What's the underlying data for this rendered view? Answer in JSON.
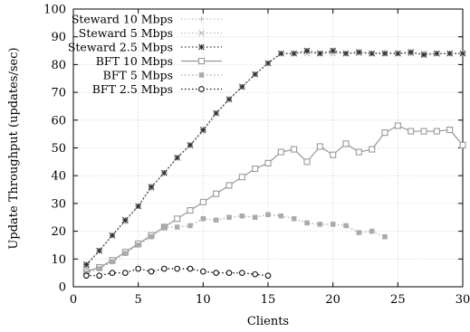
{
  "chart_data": {
    "type": "line",
    "title": "",
    "xlabel": "Clients",
    "ylabel": "Update Throughput (updates/sec)",
    "xlim": [
      0,
      30
    ],
    "ylim": [
      0,
      100
    ],
    "xticks": [
      0,
      5,
      10,
      15,
      20,
      25,
      30
    ],
    "yticks": [
      0,
      10,
      20,
      30,
      40,
      50,
      60,
      70,
      80,
      90,
      100
    ],
    "grid": true,
    "legend_position": "top-left",
    "series": [
      {
        "name": "Steward 10 Mbps",
        "marker": "plus",
        "dash": "dotted",
        "color": "#bbbbbb",
        "x": [
          1,
          2,
          3,
          4,
          5,
          6,
          7,
          8,
          9,
          10,
          11,
          12,
          13,
          14,
          15,
          16,
          17,
          18,
          19,
          20,
          21,
          22,
          23,
          24,
          25,
          26,
          27,
          28,
          29,
          30
        ],
        "y": [
          7.5,
          13,
          18.5,
          23.5,
          29,
          35.5,
          41,
          46.5,
          51,
          56,
          62.5,
          67.5,
          72,
          76.5,
          80.5,
          84,
          84,
          84.5,
          84,
          84.5,
          84,
          84.5,
          84,
          84.5,
          84,
          84,
          84,
          84,
          84,
          84
        ]
      },
      {
        "name": "Steward 5 Mbps",
        "marker": "cross",
        "dash": "dotted",
        "color": "#bbbbbb",
        "x": [
          1,
          2,
          3,
          4,
          5,
          6,
          7,
          8,
          9,
          10,
          11,
          12,
          13,
          14,
          15,
          16,
          17,
          18,
          19,
          20,
          21,
          22,
          23,
          24,
          25,
          26,
          27,
          28,
          29,
          30
        ],
        "y": [
          7.5,
          13,
          18.5,
          23.5,
          29,
          35.5,
          41,
          46.5,
          51,
          56,
          62.5,
          67.5,
          72,
          76.5,
          80.5,
          84,
          84,
          84,
          84,
          84,
          84,
          84,
          84,
          84,
          84,
          84,
          84,
          84,
          84,
          84
        ]
      },
      {
        "name": "Steward 2.5 Mbps",
        "marker": "star",
        "dash": "dotted",
        "color": "#333333",
        "x": [
          1,
          2,
          3,
          4,
          5,
          6,
          7,
          8,
          9,
          10,
          11,
          12,
          13,
          14,
          15,
          16,
          17,
          18,
          19,
          20,
          21,
          22,
          23,
          24,
          25,
          26,
          27,
          28,
          29,
          30
        ],
        "y": [
          8,
          13,
          18.5,
          24,
          29,
          36,
          41,
          46.5,
          51,
          56.5,
          62.5,
          67.5,
          72,
          76.5,
          80.5,
          84,
          84,
          85,
          84,
          85,
          84,
          84.5,
          84,
          84,
          84,
          84.5,
          83.5,
          84,
          84,
          84
        ]
      },
      {
        "name": "BFT 10 Mbps",
        "marker": "square-open",
        "dash": "solid",
        "color": "#999999",
        "x": [
          1,
          2,
          3,
          4,
          5,
          6,
          7,
          8,
          9,
          10,
          11,
          12,
          13,
          14,
          15,
          16,
          17,
          18,
          19,
          20,
          21,
          22,
          23,
          24,
          25,
          26,
          27,
          28,
          29,
          30
        ],
        "y": [
          5.5,
          7,
          9.5,
          12.5,
          15.5,
          18.5,
          21.5,
          24.5,
          27.5,
          30.5,
          33.5,
          36.5,
          39.5,
          42.5,
          44.5,
          48.5,
          49.5,
          45,
          50.5,
          47.5,
          51.5,
          48.5,
          49.5,
          55.5,
          58,
          56,
          56,
          56,
          56.5,
          51
        ]
      },
      {
        "name": "BFT 5 Mbps",
        "marker": "square-filled",
        "dash": "dotted",
        "color": "#aaaaaa",
        "x": [
          1,
          2,
          3,
          4,
          5,
          6,
          7,
          8,
          9,
          10,
          11,
          12,
          13,
          14,
          15,
          16,
          17,
          18,
          19,
          20,
          21,
          22,
          23,
          24
        ],
        "y": [
          5,
          6.5,
          9,
          12,
          15,
          18,
          21.5,
          21.5,
          22,
          24.5,
          24,
          25,
          25.5,
          25,
          26,
          25.5,
          24.5,
          23,
          22.5,
          22.5,
          22,
          19.5,
          20,
          18
        ]
      },
      {
        "name": "BFT 2.5 Mbps",
        "marker": "circle-open",
        "dash": "dotted",
        "color": "#111111",
        "x": [
          1,
          2,
          3,
          4,
          5,
          6,
          7,
          8,
          9,
          10,
          11,
          12,
          13,
          14,
          15
        ],
        "y": [
          4,
          4,
          5,
          5,
          6.5,
          5.5,
          6.5,
          6.5,
          6.5,
          5.5,
          5,
          5,
          5,
          4.5,
          4
        ]
      }
    ]
  }
}
